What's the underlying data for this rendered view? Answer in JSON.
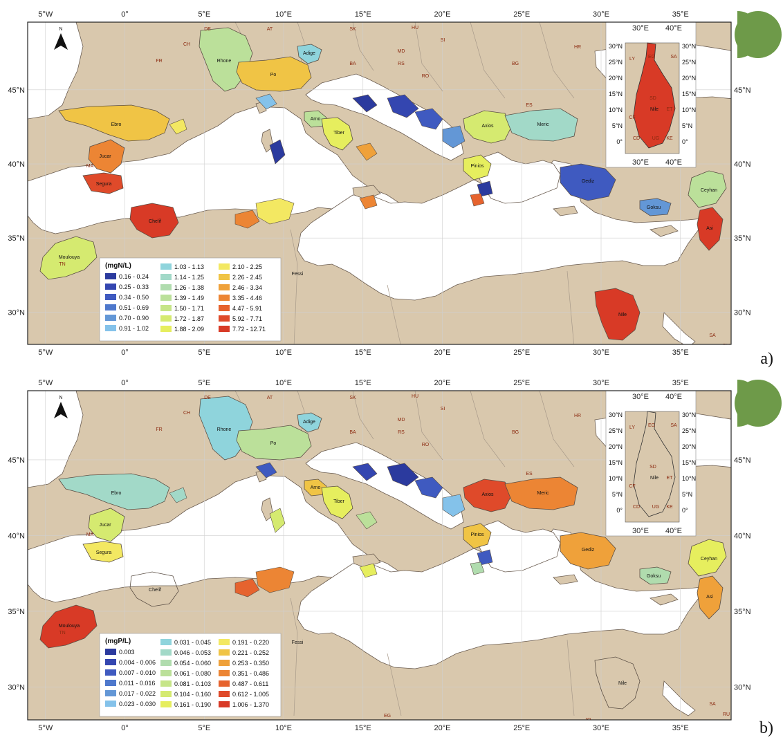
{
  "panels": [
    {
      "tag": "a)",
      "legend": {
        "title": "(mgN/L)",
        "items": [
          {
            "label": "0.16 - 0.24",
            "color": "#2b3a9e"
          },
          {
            "label": "0.25 - 0.33",
            "color": "#3446b0"
          },
          {
            "label": "0.34 - 0.50",
            "color": "#3f5ac0"
          },
          {
            "label": "0.51 - 0.69",
            "color": "#4e78cc"
          },
          {
            "label": "0.70 - 0.90",
            "color": "#6397d6"
          },
          {
            "label": "0.91 - 1.02",
            "color": "#84c2ea"
          },
          {
            "label": "1.03 - 1.13",
            "color": "#8fd4dc"
          },
          {
            "label": "1.14 - 1.25",
            "color": "#a2d9c8"
          },
          {
            "label": "1.26 - 1.38",
            "color": "#b0dcae"
          },
          {
            "label": "1.39 - 1.49",
            "color": "#bbe09a"
          },
          {
            "label": "1.50 - 1.71",
            "color": "#c6e588"
          },
          {
            "label": "1.72 - 1.87",
            "color": "#d5ea70"
          },
          {
            "label": "1.88 - 2.09",
            "color": "#e6ee5e"
          },
          {
            "label": "2.10 - 2.25",
            "color": "#f3e862"
          },
          {
            "label": "2.26 - 2.45",
            "color": "#f0c445"
          },
          {
            "label": "2.46 - 3.34",
            "color": "#efa13a"
          },
          {
            "label": "3.35 - 4.46",
            "color": "#ec8534"
          },
          {
            "label": "4.47 - 5.91",
            "color": "#e6632e"
          },
          {
            "label": "5.92 - 7.71",
            "color": "#df4a2a"
          },
          {
            "label": "7.72 - 12.71",
            "color": "#d83a26"
          }
        ]
      },
      "basins": [
        {
          "name": "Ebro",
          "color": "#f0c445"
        },
        {
          "name": "Jucar",
          "color": "#ec8534"
        },
        {
          "name": "Segura",
          "color": "#df4a2a"
        },
        {
          "name": "Rhone",
          "color": "#bbe09a"
        },
        {
          "name": "Po",
          "color": "#f0c445"
        },
        {
          "name": "Adige",
          "color": "#8fd4dc"
        },
        {
          "name": "Arno",
          "color": "#bbe09a"
        },
        {
          "name": "Tiber",
          "color": "#e6ee5e"
        },
        {
          "name": "Axios",
          "color": "#d5ea70"
        },
        {
          "name": "Meric",
          "color": "#a2d9c8"
        },
        {
          "name": "Pinios",
          "color": "#e6ee5e"
        },
        {
          "name": "Gediz",
          "color": "#3f5ac0"
        },
        {
          "name": "Goksu",
          "color": "#6397d6"
        },
        {
          "name": "Ceyhan",
          "color": "#bbe09a"
        },
        {
          "name": "Asi",
          "color": "#d83a26"
        },
        {
          "name": "Chelif",
          "color": "#d83a26"
        },
        {
          "name": "Moulouya",
          "color": "#d5ea70"
        },
        {
          "name": "Fessi",
          "color": ""
        },
        {
          "name": "Nile",
          "color": "#d83a26"
        }
      ],
      "inset_nile_color": "#d83a26"
    },
    {
      "tag": "b)",
      "legend": {
        "title": "(mgP/L)",
        "items": [
          {
            "label": "0.003",
            "color": "#2b3a9e"
          },
          {
            "label": "0.004 - 0.006",
            "color": "#3446b0"
          },
          {
            "label": "0.007 - 0.010",
            "color": "#3f5ac0"
          },
          {
            "label": "0.011 - 0.016",
            "color": "#4e78cc"
          },
          {
            "label": "0.017 - 0.022",
            "color": "#6397d6"
          },
          {
            "label": "0.023 - 0.030",
            "color": "#84c2ea"
          },
          {
            "label": "0.031 - 0.045",
            "color": "#8fd4dc"
          },
          {
            "label": "0.046 - 0.053",
            "color": "#a2d9c8"
          },
          {
            "label": "0.054 - 0.060",
            "color": "#b0dcae"
          },
          {
            "label": "0.061 - 0.080",
            "color": "#bbe09a"
          },
          {
            "label": "0.081 - 0.103",
            "color": "#c6e588"
          },
          {
            "label": "0.104 - 0.160",
            "color": "#d5ea70"
          },
          {
            "label": "0.161 - 0.190",
            "color": "#e6ee5e"
          },
          {
            "label": "0.191 - 0.220",
            "color": "#f3e862"
          },
          {
            "label": "0.221 - 0.252",
            "color": "#f0c445"
          },
          {
            "label": "0.253 - 0.350",
            "color": "#efa13a"
          },
          {
            "label": "0.351 - 0.486",
            "color": "#ec8534"
          },
          {
            "label": "0.487 - 0.611",
            "color": "#e6632e"
          },
          {
            "label": "0.612 - 1.005",
            "color": "#df4a2a"
          },
          {
            "label": "1.006 - 1.370",
            "color": "#d83a26"
          }
        ]
      },
      "basins": [
        {
          "name": "Ebro",
          "color": "#a2d9c8"
        },
        {
          "name": "Jucar",
          "color": "#d5ea70"
        },
        {
          "name": "Segura",
          "color": "#f3e862"
        },
        {
          "name": "Rhone",
          "color": "#8fd4dc"
        },
        {
          "name": "Po",
          "color": "#bbe09a"
        },
        {
          "name": "Adige",
          "color": "#8fd4dc"
        },
        {
          "name": "Arno",
          "color": "#f0c445"
        },
        {
          "name": "Tiber",
          "color": "#e6ee5e"
        },
        {
          "name": "Axios",
          "color": "#df4a2a"
        },
        {
          "name": "Meric",
          "color": "#ec8534"
        },
        {
          "name": "Pinios",
          "color": "#f0c445"
        },
        {
          "name": "Gediz",
          "color": "#efa13a"
        },
        {
          "name": "Goksu",
          "color": "#b0dcae"
        },
        {
          "name": "Ceyhan",
          "color": "#e6ee5e"
        },
        {
          "name": "Asi",
          "color": "#efa13a"
        },
        {
          "name": "Chelif",
          "color": ""
        },
        {
          "name": "Moulouya",
          "color": "#d83a26"
        },
        {
          "name": "Fessi",
          "color": ""
        },
        {
          "name": "Nile",
          "color": ""
        }
      ],
      "inset_nile_color": ""
    }
  ],
  "axes": {
    "lon_labels": [
      "5°W",
      "0°",
      "5°E",
      "10°E",
      "15°E",
      "20°E",
      "25°E",
      "30°E",
      "35°E"
    ],
    "lat_labels": [
      "45°N",
      "40°N",
      "35°N",
      "30°N"
    ],
    "north_label": "N"
  },
  "countries": [
    "FR",
    "CH",
    "DE",
    "AT",
    "SK",
    "HU",
    "MD",
    "SI",
    "HR",
    "BA",
    "RS",
    "RO",
    "BG",
    "ES",
    "MA",
    "TN",
    "LY",
    "EG",
    "JO",
    "SA",
    "RU"
  ],
  "inset": {
    "lon_labels": [
      "30°E",
      "40°E"
    ],
    "lat_labels": [
      "30°N",
      "25°N",
      "20°N",
      "15°N",
      "10°N",
      "5°N",
      "0°"
    ],
    "countries": [
      "LY",
      "EG",
      "SA",
      "SD",
      "ET",
      "CF",
      "CD",
      "UG",
      "KE"
    ],
    "basin_label": "Nile"
  },
  "colors": {
    "land": "#d9c8ad",
    "sea": "#ffffff",
    "border": "#5a4e44"
  }
}
